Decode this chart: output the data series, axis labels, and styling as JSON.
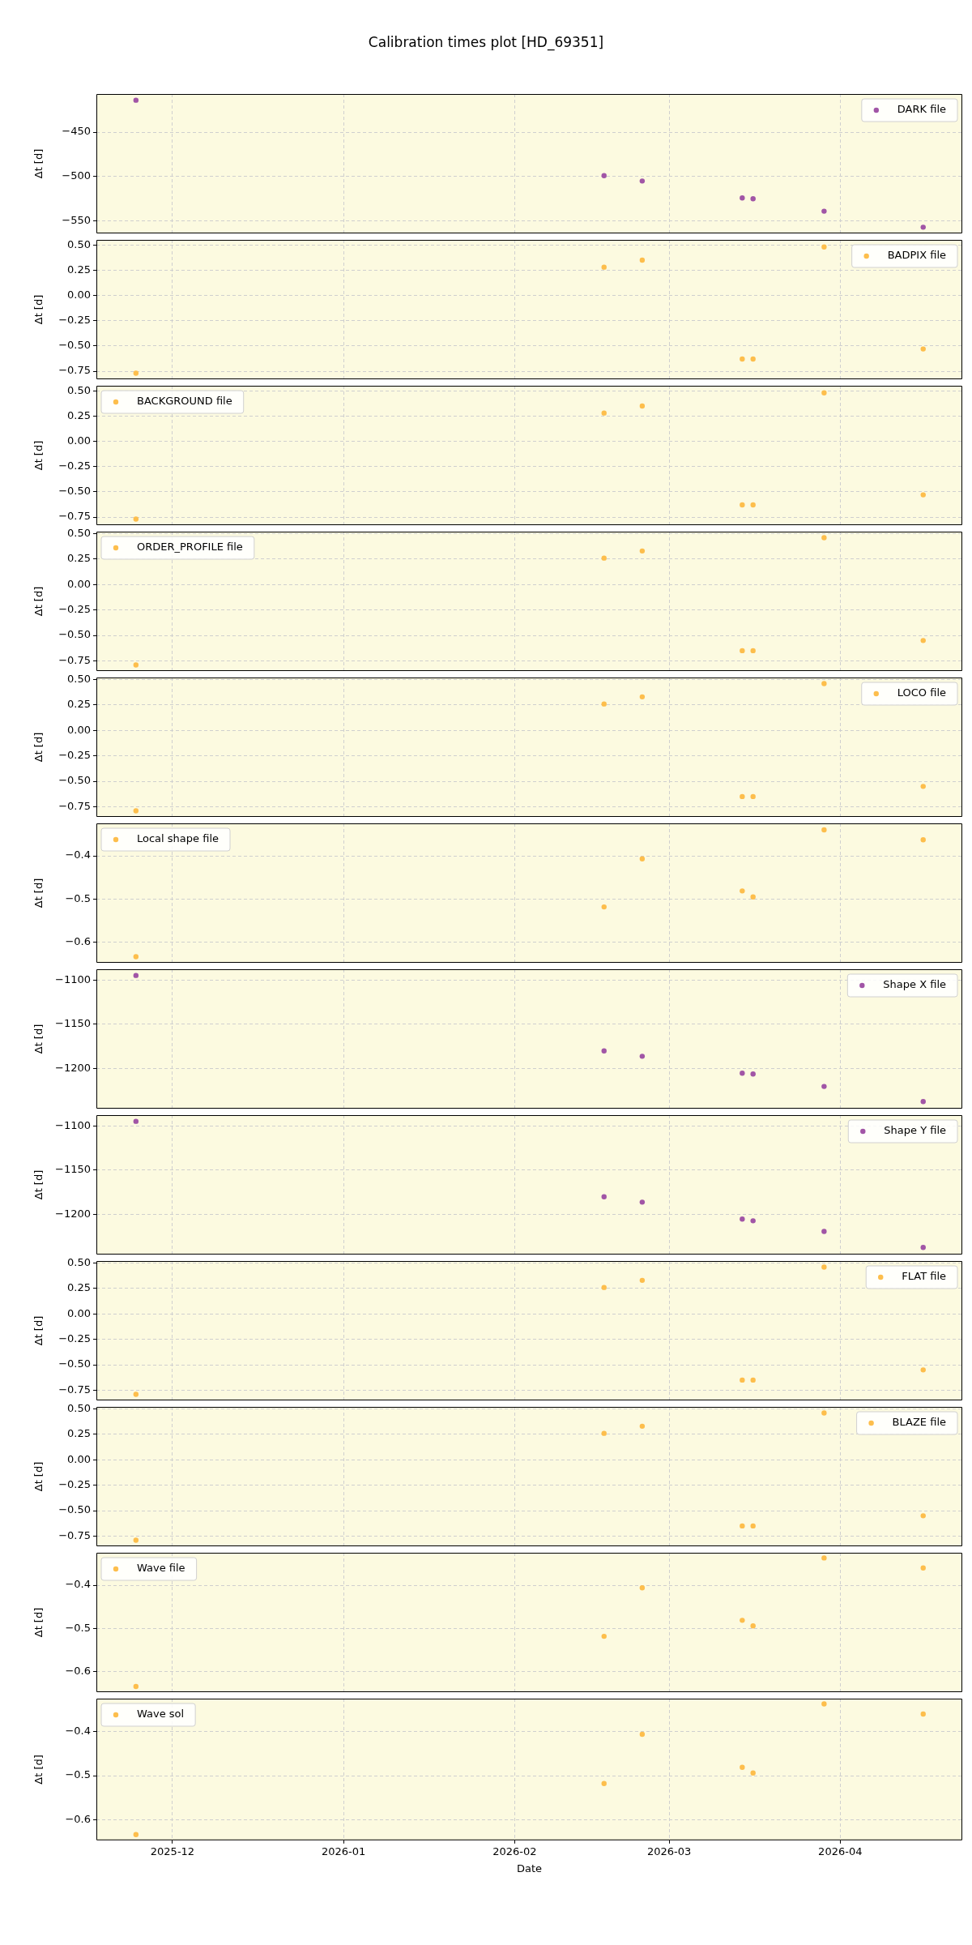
{
  "chart_data": [
    {
      "type": "scatter",
      "title": "Calibration times plot [HD_69351]",
      "ylabel": "Δt [d]",
      "xlim": [
        "2025-11-17T05:00",
        "2026-04-23T03:00"
      ],
      "xticks": [
        {
          "value": "2025-12-01",
          "label": null
        },
        {
          "value": "2026-01-01",
          "label": null
        },
        {
          "value": "2026-02-01",
          "label": null
        },
        {
          "value": "2026-03-01",
          "label": null
        },
        {
          "value": "2026-04-01",
          "label": null
        }
      ],
      "ylim": [
        -564,
        -407
      ],
      "yticks": [
        {
          "value": -550,
          "label": "−550"
        },
        {
          "value": -500,
          "label": "−500"
        },
        {
          "value": -450,
          "label": "−450"
        }
      ],
      "tick_labels": "y",
      "grid": true,
      "legend": "top right",
      "marker": "circle",
      "x": [
        "2025-11-24T09:00",
        "2026-02-17T05:00",
        "2026-02-24T03:00",
        "2026-03-14T06:00",
        "2026-03-16T05:00",
        "2026-03-29T02:00",
        "2026-04-16T01:00"
      ],
      "series": [
        {
          "name": "DARK file",
          "color": "#a155a6",
          "values": [
            -414,
            -499,
            -505,
            -524,
            -525,
            -539,
            -557
          ]
        }
      ]
    },
    {
      "type": "scatter",
      "ylabel": "Δt [d]",
      "xlim": [
        "2025-11-17T05:00",
        "2026-04-23T03:00"
      ],
      "xticks": [
        {
          "value": "2025-12-01",
          "label": null
        },
        {
          "value": "2026-01-01",
          "label": null
        },
        {
          "value": "2026-02-01",
          "label": null
        },
        {
          "value": "2026-03-01",
          "label": null
        },
        {
          "value": "2026-04-01",
          "label": null
        }
      ],
      "ylim": [
        -0.83,
        0.55
      ],
      "yticks": [
        {
          "value": -0.75,
          "label": "−0.75"
        },
        {
          "value": -0.5,
          "label": "−0.50"
        },
        {
          "value": -0.25,
          "label": "−0.25"
        },
        {
          "value": 0,
          "label": "0.00"
        },
        {
          "value": 0.25,
          "label": "0.25"
        },
        {
          "value": 0.5,
          "label": "0.50"
        }
      ],
      "tick_labels": "y",
      "grid": true,
      "legend": "top right",
      "marker": "circle",
      "x": [
        "2025-11-24T09:00",
        "2026-02-17T05:00",
        "2026-02-24T03:00",
        "2026-03-14T06:00",
        "2026-03-16T05:00",
        "2026-03-29T02:00",
        "2026-04-16T01:00"
      ],
      "series": [
        {
          "name": "BADPIX file",
          "color": "#fdbe4c",
          "values": [
            -0.77,
            0.28,
            0.35,
            -0.63,
            -0.63,
            0.48,
            -0.53
          ]
        }
      ]
    },
    {
      "type": "scatter",
      "ylabel": "Δt [d]",
      "xlim": [
        "2025-11-17T05:00",
        "2026-04-23T03:00"
      ],
      "xticks": [
        {
          "value": "2025-12-01",
          "label": null
        },
        {
          "value": "2026-01-01",
          "label": null
        },
        {
          "value": "2026-02-01",
          "label": null
        },
        {
          "value": "2026-03-01",
          "label": null
        },
        {
          "value": "2026-04-01",
          "label": null
        }
      ],
      "ylim": [
        -0.83,
        0.55
      ],
      "yticks": [
        {
          "value": -0.75,
          "label": "−0.75"
        },
        {
          "value": -0.5,
          "label": "−0.50"
        },
        {
          "value": -0.25,
          "label": "−0.25"
        },
        {
          "value": 0,
          "label": "0.00"
        },
        {
          "value": 0.25,
          "label": "0.25"
        },
        {
          "value": 0.5,
          "label": "0.50"
        }
      ],
      "tick_labels": "y",
      "grid": true,
      "legend": "top left",
      "marker": "circle",
      "x": [
        "2025-11-24T09:00",
        "2026-02-17T05:00",
        "2026-02-24T03:00",
        "2026-03-14T06:00",
        "2026-03-16T05:00",
        "2026-03-29T02:00",
        "2026-04-16T01:00"
      ],
      "series": [
        {
          "name": "BACKGROUND file",
          "color": "#fdbe4c",
          "values": [
            -0.77,
            0.28,
            0.35,
            -0.63,
            -0.63,
            0.48,
            -0.53
          ]
        }
      ]
    },
    {
      "type": "scatter",
      "ylabel": "Δt [d]",
      "xlim": [
        "2025-11-17T05:00",
        "2026-04-23T03:00"
      ],
      "xticks": [
        {
          "value": "2025-12-01",
          "label": null
        },
        {
          "value": "2026-01-01",
          "label": null
        },
        {
          "value": "2026-02-01",
          "label": null
        },
        {
          "value": "2026-03-01",
          "label": null
        },
        {
          "value": "2026-04-01",
          "label": null
        }
      ],
      "ylim": [
        -0.85,
        0.52
      ],
      "yticks": [
        {
          "value": -0.75,
          "label": "−0.75"
        },
        {
          "value": -0.5,
          "label": "−0.50"
        },
        {
          "value": -0.25,
          "label": "−0.25"
        },
        {
          "value": 0,
          "label": "0.00"
        },
        {
          "value": 0.25,
          "label": "0.25"
        },
        {
          "value": 0.5,
          "label": "0.50"
        }
      ],
      "tick_labels": "y",
      "grid": true,
      "legend": "top left",
      "marker": "circle",
      "x": [
        "2025-11-24T09:00",
        "2026-02-17T05:00",
        "2026-02-24T03:00",
        "2026-03-14T06:00",
        "2026-03-16T05:00",
        "2026-03-29T02:00",
        "2026-04-16T01:00"
      ],
      "series": [
        {
          "name": "ORDER_PROFILE file",
          "color": "#fdbe4c",
          "values": [
            -0.79,
            0.26,
            0.33,
            -0.65,
            -0.65,
            0.46,
            -0.55
          ]
        }
      ]
    },
    {
      "type": "scatter",
      "ylabel": "Δt [d]",
      "xlim": [
        "2025-11-17T05:00",
        "2026-04-23T03:00"
      ],
      "xticks": [
        {
          "value": "2025-12-01",
          "label": null
        },
        {
          "value": "2026-01-01",
          "label": null
        },
        {
          "value": "2026-02-01",
          "label": null
        },
        {
          "value": "2026-03-01",
          "label": null
        },
        {
          "value": "2026-04-01",
          "label": null
        }
      ],
      "ylim": [
        -0.85,
        0.52
      ],
      "yticks": [
        {
          "value": -0.75,
          "label": "−0.75"
        },
        {
          "value": -0.5,
          "label": "−0.50"
        },
        {
          "value": -0.25,
          "label": "−0.25"
        },
        {
          "value": 0,
          "label": "0.00"
        },
        {
          "value": 0.25,
          "label": "0.25"
        },
        {
          "value": 0.5,
          "label": "0.50"
        }
      ],
      "tick_labels": "y",
      "grid": true,
      "legend": "top right",
      "marker": "circle",
      "x": [
        "2025-11-24T09:00",
        "2026-02-17T05:00",
        "2026-02-24T03:00",
        "2026-03-14T06:00",
        "2026-03-16T05:00",
        "2026-03-29T02:00",
        "2026-04-16T01:00"
      ],
      "series": [
        {
          "name": "LOCO file",
          "color": "#fdbe4c",
          "values": [
            -0.79,
            0.26,
            0.33,
            -0.65,
            -0.65,
            0.46,
            -0.55
          ]
        }
      ]
    },
    {
      "type": "scatter",
      "ylabel": "Δt [d]",
      "xlim": [
        "2025-11-17T05:00",
        "2026-04-23T03:00"
      ],
      "xticks": [
        {
          "value": "2025-12-01",
          "label": null
        },
        {
          "value": "2026-01-01",
          "label": null
        },
        {
          "value": "2026-02-01",
          "label": null
        },
        {
          "value": "2026-03-01",
          "label": null
        },
        {
          "value": "2026-04-01",
          "label": null
        }
      ],
      "ylim": [
        -0.647,
        -0.325
      ],
      "yticks": [
        {
          "value": -0.6,
          "label": "−0.6"
        },
        {
          "value": -0.5,
          "label": "−0.5"
        },
        {
          "value": -0.4,
          "label": "−0.4"
        }
      ],
      "tick_labels": "y",
      "grid": true,
      "legend": "top left",
      "marker": "circle",
      "x": [
        "2025-11-24T09:00",
        "2026-02-17T05:00",
        "2026-02-24T03:00",
        "2026-03-14T06:00",
        "2026-03-16T05:00",
        "2026-03-29T02:00",
        "2026-04-16T01:00"
      ],
      "series": [
        {
          "name": "Local shape file",
          "color": "#fdbe4c",
          "values": [
            -0.633,
            -0.518,
            -0.407,
            -0.481,
            -0.495,
            -0.34,
            -0.363
          ]
        }
      ]
    },
    {
      "type": "scatter",
      "ylabel": "Δt [d]",
      "xlim": [
        "2025-11-17T05:00",
        "2026-04-23T03:00"
      ],
      "xticks": [
        {
          "value": "2025-12-01",
          "label": null
        },
        {
          "value": "2026-01-01",
          "label": null
        },
        {
          "value": "2026-02-01",
          "label": null
        },
        {
          "value": "2026-03-01",
          "label": null
        },
        {
          "value": "2026-04-01",
          "label": null
        }
      ],
      "ylim": [
        -1245,
        -1088
      ],
      "yticks": [
        {
          "value": -1200,
          "label": "−1200"
        },
        {
          "value": -1150,
          "label": "−1150"
        },
        {
          "value": -1100,
          "label": "−1100"
        }
      ],
      "tick_labels": "y",
      "grid": true,
      "legend": "top right",
      "marker": "circle",
      "x": [
        "2025-11-24T09:00",
        "2026-02-17T05:00",
        "2026-02-24T03:00",
        "2026-03-14T06:00",
        "2026-03-16T05:00",
        "2026-03-29T02:00",
        "2026-04-16T01:00"
      ],
      "series": [
        {
          "name": "Shape X file",
          "color": "#a155a6",
          "values": [
            -1095,
            -1180,
            -1186,
            -1205,
            -1206,
            -1220,
            -1237
          ]
        }
      ]
    },
    {
      "type": "scatter",
      "ylabel": "Δt [d]",
      "xlim": [
        "2025-11-17T05:00",
        "2026-04-23T03:00"
      ],
      "xticks": [
        {
          "value": "2025-12-01",
          "label": null
        },
        {
          "value": "2026-01-01",
          "label": null
        },
        {
          "value": "2026-02-01",
          "label": null
        },
        {
          "value": "2026-03-01",
          "label": null
        },
        {
          "value": "2026-04-01",
          "label": null
        }
      ],
      "ylim": [
        -1245,
        -1088
      ],
      "yticks": [
        {
          "value": -1200,
          "label": "−1200"
        },
        {
          "value": -1150,
          "label": "−1150"
        },
        {
          "value": -1100,
          "label": "−1100"
        }
      ],
      "tick_labels": "y",
      "grid": true,
      "legend": "top right",
      "marker": "circle",
      "x": [
        "2025-11-24T09:00",
        "2026-02-17T05:00",
        "2026-02-24T03:00",
        "2026-03-14T06:00",
        "2026-03-16T05:00",
        "2026-03-29T02:00",
        "2026-04-16T01:00"
      ],
      "series": [
        {
          "name": "Shape Y file",
          "color": "#a155a6",
          "values": [
            -1095,
            -1180,
            -1186,
            -1205,
            -1207,
            -1219,
            -1237
          ]
        }
      ]
    },
    {
      "type": "scatter",
      "ylabel": "Δt [d]",
      "xlim": [
        "2025-11-17T05:00",
        "2026-04-23T03:00"
      ],
      "xticks": [
        {
          "value": "2025-12-01",
          "label": null
        },
        {
          "value": "2026-01-01",
          "label": null
        },
        {
          "value": "2026-02-01",
          "label": null
        },
        {
          "value": "2026-03-01",
          "label": null
        },
        {
          "value": "2026-04-01",
          "label": null
        }
      ],
      "ylim": [
        -0.85,
        0.52
      ],
      "yticks": [
        {
          "value": -0.75,
          "label": "−0.75"
        },
        {
          "value": -0.5,
          "label": "−0.50"
        },
        {
          "value": -0.25,
          "label": "−0.25"
        },
        {
          "value": 0,
          "label": "0.00"
        },
        {
          "value": 0.25,
          "label": "0.25"
        },
        {
          "value": 0.5,
          "label": "0.50"
        }
      ],
      "tick_labels": "y",
      "grid": true,
      "legend": "top right",
      "marker": "circle",
      "x": [
        "2025-11-24T09:00",
        "2026-02-17T05:00",
        "2026-02-24T03:00",
        "2026-03-14T06:00",
        "2026-03-16T05:00",
        "2026-03-29T02:00",
        "2026-04-16T01:00"
      ],
      "series": [
        {
          "name": "FLAT file",
          "color": "#fdbe4c",
          "values": [
            -0.79,
            0.26,
            0.33,
            -0.65,
            -0.65,
            0.46,
            -0.55
          ]
        }
      ]
    },
    {
      "type": "scatter",
      "ylabel": "Δt [d]",
      "xlim": [
        "2025-11-17T05:00",
        "2026-04-23T03:00"
      ],
      "xticks": [
        {
          "value": "2025-12-01",
          "label": null
        },
        {
          "value": "2026-01-01",
          "label": null
        },
        {
          "value": "2026-02-01",
          "label": null
        },
        {
          "value": "2026-03-01",
          "label": null
        },
        {
          "value": "2026-04-01",
          "label": null
        }
      ],
      "ylim": [
        -0.85,
        0.52
      ],
      "yticks": [
        {
          "value": -0.75,
          "label": "−0.75"
        },
        {
          "value": -0.5,
          "label": "−0.50"
        },
        {
          "value": -0.25,
          "label": "−0.25"
        },
        {
          "value": 0,
          "label": "0.00"
        },
        {
          "value": 0.25,
          "label": "0.25"
        },
        {
          "value": 0.5,
          "label": "0.50"
        }
      ],
      "tick_labels": "y",
      "grid": true,
      "legend": "top right",
      "marker": "circle",
      "x": [
        "2025-11-24T09:00",
        "2026-02-17T05:00",
        "2026-02-24T03:00",
        "2026-03-14T06:00",
        "2026-03-16T05:00",
        "2026-03-29T02:00",
        "2026-04-16T01:00"
      ],
      "series": [
        {
          "name": "BLAZE file",
          "color": "#fdbe4c",
          "values": [
            -0.79,
            0.26,
            0.33,
            -0.65,
            -0.65,
            0.46,
            -0.55
          ]
        }
      ]
    },
    {
      "type": "scatter",
      "ylabel": "Δt [d]",
      "xlim": [
        "2025-11-17T05:00",
        "2026-04-23T03:00"
      ],
      "xticks": [
        {
          "value": "2025-12-01",
          "label": null
        },
        {
          "value": "2026-01-01",
          "label": null
        },
        {
          "value": "2026-02-01",
          "label": null
        },
        {
          "value": "2026-03-01",
          "label": null
        },
        {
          "value": "2026-04-01",
          "label": null
        }
      ],
      "ylim": [
        -0.647,
        -0.325
      ],
      "yticks": [
        {
          "value": -0.6,
          "label": "−0.6"
        },
        {
          "value": -0.5,
          "label": "−0.5"
        },
        {
          "value": -0.4,
          "label": "−0.4"
        }
      ],
      "tick_labels": "y",
      "grid": true,
      "legend": "top left",
      "marker": "circle",
      "x": [
        "2025-11-24T09:00",
        "2026-02-17T05:00",
        "2026-02-24T03:00",
        "2026-03-14T06:00",
        "2026-03-16T05:00",
        "2026-03-29T02:00",
        "2026-04-16T01:00"
      ],
      "series": [
        {
          "name": "Wave file",
          "color": "#fdbe4c",
          "values": [
            -0.634,
            -0.518,
            -0.406,
            -0.481,
            -0.494,
            -0.337,
            -0.36
          ]
        }
      ]
    },
    {
      "type": "scatter",
      "ylabel": "Δt [d]",
      "xlabel": "Date",
      "xlim": [
        "2025-11-17T05:00",
        "2026-04-23T03:00"
      ],
      "xticks": [
        {
          "value": "2025-12-01",
          "label": "2025-12"
        },
        {
          "value": "2026-01-01",
          "label": "2026-01"
        },
        {
          "value": "2026-02-01",
          "label": "2026-02"
        },
        {
          "value": "2026-03-01",
          "label": "2026-03"
        },
        {
          "value": "2026-04-01",
          "label": "2026-04"
        }
      ],
      "ylim": [
        -0.647,
        -0.325
      ],
      "yticks": [
        {
          "value": -0.6,
          "label": "−0.6"
        },
        {
          "value": -0.5,
          "label": "−0.5"
        },
        {
          "value": -0.4,
          "label": "−0.4"
        }
      ],
      "grid": true,
      "legend": "top left",
      "marker": "circle",
      "x": [
        "2025-11-24T09:00",
        "2026-02-17T05:00",
        "2026-02-24T03:00",
        "2026-03-14T06:00",
        "2026-03-16T05:00",
        "2026-03-29T02:00",
        "2026-04-16T01:00"
      ],
      "series": [
        {
          "name": "Wave sol",
          "color": "#fdbe4c",
          "values": [
            -0.634,
            -0.518,
            -0.406,
            -0.481,
            -0.494,
            -0.337,
            -0.36
          ]
        }
      ]
    }
  ]
}
